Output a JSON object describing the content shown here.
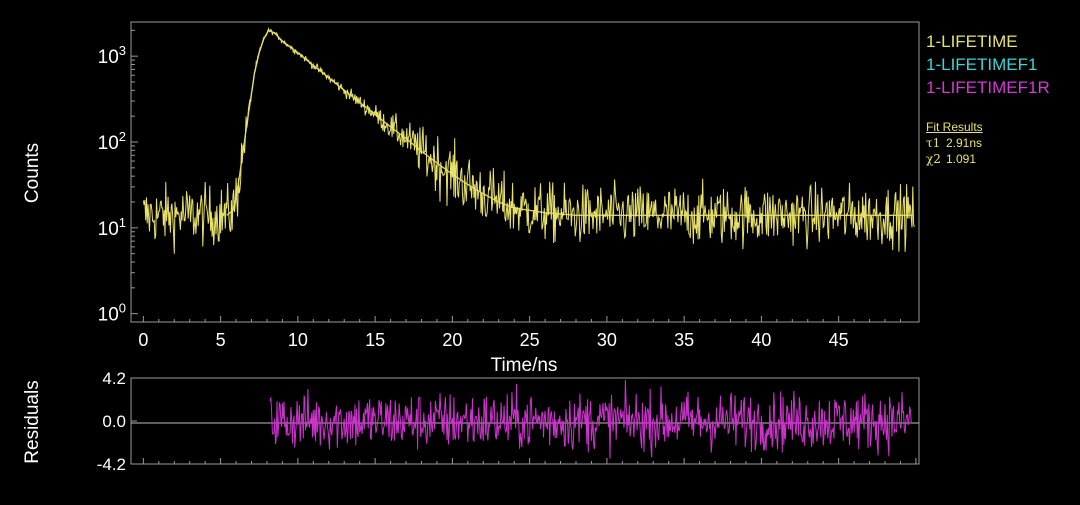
{
  "colors": {
    "background": "#000000",
    "frame": "#9a9a9a",
    "axis_text": "#ffffff",
    "data": "#e8e26a",
    "fit": "#3ad6d6",
    "residual": "#cc33cc",
    "fit_text": "#e8e26a"
  },
  "legend": [
    {
      "label": "1-LIFETIME",
      "color": "#e8e26a"
    },
    {
      "label": "1-LIFETIMEF1",
      "color": "#3ad6d6"
    },
    {
      "label": "1-LIFETIMEF1R",
      "color": "#d43ad4"
    }
  ],
  "fit_results": {
    "title": "Fit Results",
    "rows": [
      {
        "symbol": "τ1",
        "value": "2.91ns"
      },
      {
        "symbol": "χ2",
        "value": "1.091"
      }
    ]
  },
  "chart_data": [
    {
      "type": "line",
      "ylabel": "Counts",
      "xlabel": "Time/ns",
      "yscale": "log",
      "ylim": [
        0.8,
        2500
      ],
      "xlim": [
        -0.8,
        50.2
      ],
      "x_ticks": [
        0,
        5,
        10,
        15,
        20,
        25,
        30,
        35,
        40,
        45
      ],
      "y_ticks": [
        {
          "value": 1,
          "base": "10",
          "exp": "0"
        },
        {
          "value": 10,
          "base": "10",
          "exp": "1"
        },
        {
          "value": 100,
          "base": "10",
          "exp": "2"
        },
        {
          "value": 1000,
          "base": "10",
          "exp": "3"
        }
      ],
      "series": [
        {
          "name": "1-LIFETIME",
          "kind": "data",
          "noise_amplitude": 0.17,
          "x": [
            0,
            5.4,
            5.8,
            6.0,
            6.3,
            6.6,
            6.9,
            7.2,
            7.5,
            7.8,
            8.1,
            8.5,
            9.0,
            10,
            11,
            12,
            13,
            14,
            15,
            16,
            17,
            18,
            19,
            20,
            21,
            22,
            23,
            24,
            25,
            26,
            27,
            28,
            30,
            35,
            40,
            45,
            50
          ],
          "y": [
            14,
            14,
            16,
            22,
            50,
            120,
            280,
            650,
            1100,
            1600,
            2000,
            1850,
            1500,
            1100,
            780,
            560,
            400,
            290,
            210,
            150,
            110,
            78,
            57,
            42,
            32,
            25,
            20,
            17,
            16,
            15,
            14.5,
            14,
            14,
            14,
            14,
            14,
            14
          ]
        },
        {
          "name": "1-LIFETIMEF1",
          "kind": "fit",
          "x": [
            5.4,
            5.8,
            6.0,
            6.3,
            6.6,
            6.9,
            7.2,
            7.5,
            7.8,
            8.1,
            8.5,
            9.0,
            10,
            11,
            12,
            13,
            14,
            15,
            16,
            17,
            18,
            19,
            20,
            21,
            22,
            23,
            24,
            25,
            26,
            27,
            28,
            30,
            35,
            40,
            45,
            50
          ],
          "y": [
            14,
            16,
            22,
            50,
            120,
            280,
            650,
            1100,
            1600,
            2000,
            1850,
            1500,
            1100,
            780,
            560,
            400,
            290,
            210,
            150,
            110,
            78,
            57,
            42,
            32,
            25,
            20,
            17,
            16,
            15,
            14.5,
            14,
            14,
            14,
            14,
            14,
            14
          ]
        }
      ]
    },
    {
      "type": "line",
      "ylabel": "Residuals",
      "xlim": [
        -0.8,
        50.2
      ],
      "ylim": [
        -4.2,
        4.2
      ],
      "y_ticks": [
        "4.2",
        "0.0",
        "-4.2"
      ],
      "series": [
        {
          "name": "1-LIFETIMEF1R",
          "x_start": 8.2,
          "x_end": 49.7,
          "amplitude": 1.4
        }
      ]
    }
  ]
}
